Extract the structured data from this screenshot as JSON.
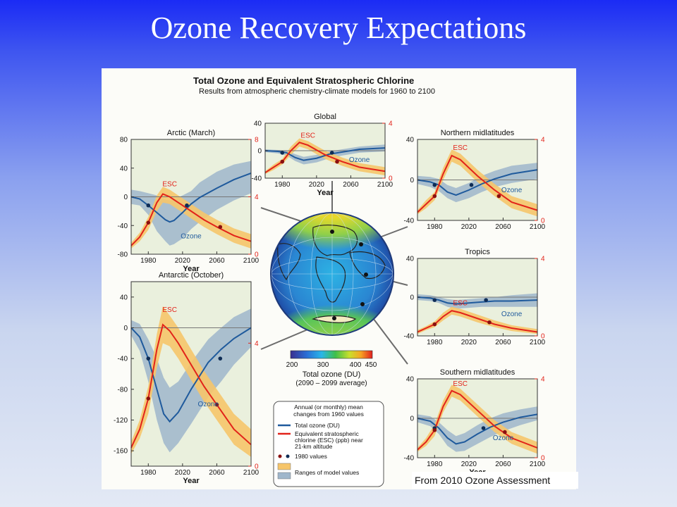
{
  "slide": {
    "title": "Ozone Recovery Expectations",
    "credit": "From 2010 Ozone Assessment"
  },
  "figure": {
    "title": "Total Ozone and Equivalent Stratospheric Chlorine",
    "subtitle": "Results from atmospheric chemistry-climate models for 1960 to 2100",
    "colorbar": {
      "ticks": [
        "200",
        "300",
        "400",
        "450"
      ],
      "label": "Total ozone (DU)",
      "sublabel": "(2090 – 2099 average)"
    },
    "legend": {
      "heading": [
        "Annual (or monthly) mean",
        "changes from 1960 values"
      ],
      "items": [
        {
          "label": [
            "Total ozone (DU)"
          ],
          "swatch": "line",
          "color": "#1f5a9c"
        },
        {
          "label": [
            "Equivalent stratospheric",
            "chlorine (ESC) (ppb) near",
            "21-km altitude"
          ],
          "swatch": "line",
          "color": "#e2231a"
        },
        {
          "label": [
            "1980 values"
          ],
          "swatch": "dots"
        },
        {
          "label": [
            "Ranges of model values"
          ],
          "swatch": "bands"
        }
      ]
    },
    "colors": {
      "ozone": "#1f5a9c",
      "ozone_band": "#9fb6cb",
      "esc": "#e2231a",
      "esc_band": "#f6c56a",
      "plot_bg": "#eaf0dd"
    }
  },
  "chart_data": [
    {
      "type": "line",
      "title": "Arctic (March)",
      "xlabel": "Year",
      "ylabel": "",
      "xlim": [
        1960,
        2100
      ],
      "ylim": [
        -80,
        80
      ],
      "y2lim": [
        0,
        8
      ],
      "xticks": [
        "1980",
        "2020",
        "2060",
        "2100"
      ],
      "yticks": [
        "80",
        "40",
        "0",
        "-40",
        "-80"
      ],
      "y2ticks": [
        "8",
        "4",
        "0"
      ],
      "series": [
        {
          "name": "Ozone",
          "axis": "left",
          "x": [
            1960,
            1970,
            1980,
            1990,
            2000,
            2005,
            2010,
            2020,
            2030,
            2040,
            2060,
            2080,
            2100
          ],
          "y": [
            0,
            -3,
            -12,
            -22,
            -32,
            -35,
            -33,
            -22,
            -10,
            -1,
            12,
            24,
            33
          ],
          "band_low": [
            -10,
            -12,
            -25,
            -48,
            -62,
            -68,
            -66,
            -58,
            -45,
            -35,
            -18,
            -5,
            5
          ],
          "band_high": [
            10,
            8,
            5,
            2,
            -4,
            -5,
            -4,
            2,
            8,
            20,
            35,
            45,
            50
          ]
        },
        {
          "name": "ESC",
          "axis": "right",
          "x": [
            1960,
            1970,
            1980,
            1990,
            1997,
            2005,
            2015,
            2030,
            2045,
            2060,
            2080,
            2100
          ],
          "y": [
            0.6,
            1.2,
            2.2,
            3.6,
            4.2,
            4.0,
            3.6,
            3.0,
            2.4,
            1.9,
            1.3,
            0.9
          ],
          "band_low": [
            0.4,
            0.9,
            1.7,
            3.0,
            3.6,
            3.5,
            3.1,
            2.5,
            1.9,
            1.4,
            0.8,
            0.4
          ],
          "band_high": [
            0.8,
            1.5,
            2.6,
            4.1,
            4.7,
            4.5,
            4.1,
            3.5,
            2.9,
            2.4,
            1.8,
            1.4
          ]
        }
      ],
      "markers_1980": [
        {
          "x": 1980,
          "axis": "left",
          "y": -12
        },
        {
          "x": 2025,
          "axis": "left",
          "y": -12
        },
        {
          "x": 1980,
          "axis": "right",
          "y": 2.2
        },
        {
          "x": 2064,
          "axis": "right",
          "y": 1.9
        }
      ]
    },
    {
      "type": "line",
      "title": "Global",
      "xlabel": "Year",
      "ylabel": "",
      "xlim": [
        1960,
        2100
      ],
      "ylim": [
        -40,
        40
      ],
      "y2lim": [
        0,
        4
      ],
      "xticks": [
        "1980",
        "2020",
        "2060",
        "2100"
      ],
      "yticks": [
        "40",
        "0",
        "-40"
      ],
      "y2ticks": [
        "4",
        "0"
      ],
      "series": [
        {
          "name": "Ozone",
          "axis": "left",
          "x": [
            1960,
            1975,
            1985,
            1995,
            2005,
            2020,
            2035,
            2050,
            2070,
            2100
          ],
          "y": [
            0,
            -1,
            -3,
            -10,
            -14,
            -11,
            -5,
            -2,
            2,
            4
          ],
          "band_low": [
            -2,
            -4,
            -7,
            -15,
            -20,
            -17,
            -11,
            -7,
            -3,
            -1
          ],
          "band_high": [
            2,
            1,
            0,
            -5,
            -9,
            -6,
            -1,
            2,
            6,
            9
          ]
        },
        {
          "name": "ESC",
          "axis": "right",
          "x": [
            1960,
            1970,
            1980,
            1990,
            2000,
            2010,
            2030,
            2050,
            2070,
            2100
          ],
          "y": [
            0.4,
            0.8,
            1.2,
            2.0,
            2.6,
            2.4,
            1.7,
            1.2,
            0.8,
            0.5
          ],
          "band_low": [
            0.3,
            0.6,
            1.0,
            1.7,
            2.3,
            2.1,
            1.4,
            0.9,
            0.5,
            0.2
          ],
          "band_high": [
            0.5,
            1.0,
            1.4,
            2.3,
            2.9,
            2.7,
            2.0,
            1.5,
            1.1,
            0.8
          ]
        }
      ],
      "markers_1980": [
        {
          "x": 1980,
          "axis": "left",
          "y": -3
        },
        {
          "x": 2038,
          "axis": "left",
          "y": -3
        },
        {
          "x": 1980,
          "axis": "right",
          "y": 1.2
        },
        {
          "x": 2044,
          "axis": "right",
          "y": 1.2
        }
      ]
    },
    {
      "type": "line",
      "title": "Northern midlatitudes",
      "xlabel": "",
      "ylabel": "",
      "xlim": [
        1960,
        2100
      ],
      "ylim": [
        -40,
        40
      ],
      "y2lim": [
        0,
        4
      ],
      "xticks": [
        "1980",
        "2020",
        "2060",
        "2100"
      ],
      "yticks": [
        "40",
        "0",
        "-40"
      ],
      "y2ticks": [
        "4",
        "0"
      ],
      "series": [
        {
          "name": "Ozone",
          "axis": "left",
          "x": [
            1960,
            1975,
            1985,
            1995,
            2005,
            2020,
            2035,
            2050,
            2070,
            2100
          ],
          "y": [
            0,
            -2,
            -5,
            -12,
            -15,
            -10,
            -4,
            1,
            6,
            10
          ],
          "band_low": [
            -4,
            -7,
            -11,
            -18,
            -22,
            -18,
            -12,
            -7,
            -3,
            1
          ],
          "band_high": [
            4,
            3,
            1,
            -5,
            -8,
            -3,
            4,
            9,
            14,
            17
          ]
        },
        {
          "name": "ESC",
          "axis": "right",
          "x": [
            1960,
            1970,
            1980,
            1990,
            2000,
            2010,
            2030,
            2050,
            2070,
            2100
          ],
          "y": [
            0.4,
            0.8,
            1.2,
            2.3,
            3.2,
            3.0,
            2.2,
            1.5,
            0.9,
            0.5
          ],
          "band_low": [
            0.3,
            0.6,
            1.0,
            2.0,
            2.9,
            2.7,
            1.9,
            1.2,
            0.6,
            0.2
          ],
          "band_high": [
            0.5,
            1.0,
            1.4,
            2.6,
            3.5,
            3.3,
            2.5,
            1.8,
            1.2,
            0.8
          ]
        }
      ],
      "markers_1980": [
        {
          "x": 1980,
          "axis": "left",
          "y": -5
        },
        {
          "x": 2023,
          "axis": "left",
          "y": -5
        },
        {
          "x": 1980,
          "axis": "right",
          "y": 1.2
        },
        {
          "x": 2055,
          "axis": "right",
          "y": 1.2
        }
      ]
    },
    {
      "type": "line",
      "title": "Antarctic (October)",
      "xlabel": "Year",
      "ylabel": "",
      "xlim": [
        1960,
        2100
      ],
      "ylim": [
        -180,
        60
      ],
      "y2lim": [
        0,
        6
      ],
      "xticks": [
        "1980",
        "2020",
        "2060",
        "2100"
      ],
      "yticks": [
        "40",
        "0",
        "-40",
        "-80",
        "-120",
        "-160"
      ],
      "y2ticks": [
        "4",
        "0"
      ],
      "series": [
        {
          "name": "Ozone",
          "axis": "left",
          "x": [
            1960,
            1970,
            1980,
            1990,
            1998,
            2005,
            2015,
            2030,
            2050,
            2065,
            2080,
            2100
          ],
          "y": [
            0,
            -12,
            -40,
            -80,
            -112,
            -122,
            -110,
            -80,
            -45,
            -28,
            -14,
            0
          ],
          "band_low": [
            -10,
            -30,
            -70,
            -120,
            -150,
            -162,
            -150,
            -125,
            -90,
            -70,
            -48,
            -25
          ],
          "band_high": [
            10,
            5,
            -15,
            -40,
            -65,
            -78,
            -70,
            -45,
            -15,
            0,
            14,
            25
          ]
        },
        {
          "name": "ESC",
          "axis": "right",
          "x": [
            1960,
            1970,
            1980,
            1990,
            1997,
            2005,
            2015,
            2030,
            2045,
            2060,
            2080,
            2100
          ],
          "y": [
            0.6,
            1.2,
            2.2,
            3.8,
            4.6,
            4.4,
            4.0,
            3.3,
            2.6,
            2.0,
            1.2,
            0.7
          ],
          "band_low": [
            0.4,
            0.9,
            1.7,
            3.2,
            4.0,
            3.9,
            3.5,
            2.8,
            2.1,
            1.5,
            0.7,
            0.3
          ],
          "band_high": [
            0.8,
            1.5,
            2.6,
            4.3,
            5.2,
            4.9,
            4.5,
            3.8,
            3.1,
            2.5,
            1.7,
            1.2
          ]
        }
      ],
      "markers_1980": [
        {
          "x": 1980,
          "axis": "left",
          "y": -40
        },
        {
          "x": 2064,
          "axis": "left",
          "y": -40
        },
        {
          "x": 1980,
          "axis": "right",
          "y": 2.2
        },
        {
          "x": 2060,
          "axis": "right",
          "y": 2.0
        }
      ]
    },
    {
      "type": "line",
      "title": "Tropics",
      "xlabel": "",
      "ylabel": "",
      "xlim": [
        1960,
        2100
      ],
      "ylim": [
        -40,
        40
      ],
      "y2lim": [
        0,
        4
      ],
      "xticks": [
        "1980",
        "2020",
        "2060",
        "2100"
      ],
      "yticks": [
        "40",
        "0",
        "-40"
      ],
      "y2ticks": [
        "4",
        "0"
      ],
      "series": [
        {
          "name": "Ozone",
          "axis": "left",
          "x": [
            1960,
            1975,
            1985,
            1995,
            2005,
            2020,
            2035,
            2050,
            2070,
            2100
          ],
          "y": [
            0,
            -1,
            -3,
            -6,
            -7,
            -6,
            -5,
            -4,
            -4,
            -3
          ],
          "band_low": [
            -3,
            -4,
            -6,
            -10,
            -12,
            -11,
            -10,
            -10,
            -10,
            -10
          ],
          "band_high": [
            3,
            2,
            0,
            -2,
            -3,
            -2,
            -1,
            0,
            2,
            4
          ]
        },
        {
          "name": "ESC",
          "axis": "right",
          "x": [
            1960,
            1970,
            1980,
            1990,
            2000,
            2010,
            2030,
            2050,
            2070,
            2100
          ],
          "y": [
            0.2,
            0.4,
            0.6,
            1.0,
            1.3,
            1.2,
            0.9,
            0.6,
            0.4,
            0.2
          ],
          "band_low": [
            0.1,
            0.3,
            0.45,
            0.8,
            1.1,
            1.0,
            0.7,
            0.45,
            0.25,
            0.1
          ],
          "band_high": [
            0.3,
            0.5,
            0.75,
            1.2,
            1.5,
            1.4,
            1.1,
            0.8,
            0.55,
            0.35
          ]
        }
      ],
      "markers_1980": [
        {
          "x": 1980,
          "axis": "left",
          "y": -3
        },
        {
          "x": 2040,
          "axis": "left",
          "y": -3
        },
        {
          "x": 1980,
          "axis": "right",
          "y": 0.6
        },
        {
          "x": 2044,
          "axis": "right",
          "y": 0.7
        }
      ]
    },
    {
      "type": "line",
      "title": "Southern midlatitudes",
      "xlabel": "Year",
      "ylabel": "",
      "xlim": [
        1960,
        2100
      ],
      "ylim": [
        -40,
        40
      ],
      "y2lim": [
        0,
        4
      ],
      "xticks": [
        "1980",
        "2020",
        "2060",
        "2100"
      ],
      "yticks": [
        "40",
        "0",
        "-40"
      ],
      "y2ticks": [
        "4",
        "0"
      ],
      "series": [
        {
          "name": "Ozone",
          "axis": "left",
          "x": [
            1960,
            1975,
            1985,
            1995,
            2005,
            2015,
            2030,
            2045,
            2060,
            2080,
            2100
          ],
          "y": [
            0,
            -3,
            -10,
            -20,
            -26,
            -24,
            -16,
            -9,
            -4,
            1,
            4
          ],
          "band_low": [
            -4,
            -8,
            -16,
            -28,
            -34,
            -33,
            -26,
            -19,
            -13,
            -7,
            -2
          ],
          "band_high": [
            4,
            2,
            -4,
            -12,
            -18,
            -15,
            -7,
            0,
            5,
            9,
            12
          ]
        },
        {
          "name": "ESC",
          "axis": "right",
          "x": [
            1960,
            1970,
            1980,
            1990,
            2000,
            2010,
            2030,
            2050,
            2070,
            2100
          ],
          "y": [
            0.4,
            0.8,
            1.4,
            2.6,
            3.4,
            3.2,
            2.4,
            1.6,
            1.0,
            0.5
          ],
          "band_low": [
            0.3,
            0.6,
            1.1,
            2.3,
            3.1,
            2.9,
            2.1,
            1.3,
            0.7,
            0.2
          ],
          "band_high": [
            0.5,
            1.0,
            1.7,
            2.9,
            3.7,
            3.5,
            2.7,
            1.9,
            1.3,
            0.8
          ]
        }
      ],
      "markers_1980": [
        {
          "x": 1980,
          "axis": "left",
          "y": -10
        },
        {
          "x": 2037,
          "axis": "left",
          "y": -10
        },
        {
          "x": 1980,
          "axis": "right",
          "y": 1.4
        },
        {
          "x": 2062,
          "axis": "right",
          "y": 1.3
        }
      ]
    }
  ]
}
